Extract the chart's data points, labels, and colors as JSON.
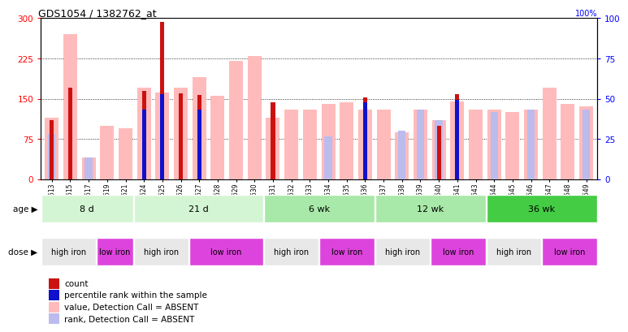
{
  "title": "GDS1054 / 1382762_at",
  "samples": [
    "GSM33513",
    "GSM33515",
    "GSM33517",
    "GSM33519",
    "GSM33521",
    "GSM33524",
    "GSM33525",
    "GSM33526",
    "GSM33527",
    "GSM33528",
    "GSM33529",
    "GSM33530",
    "GSM33531",
    "GSM33532",
    "GSM33533",
    "GSM33534",
    "GSM33535",
    "GSM33536",
    "GSM33537",
    "GSM33538",
    "GSM33539",
    "GSM33540",
    "GSM33541",
    "GSM33543",
    "GSM33544",
    "GSM33545",
    "GSM33546",
    "GSM33547",
    "GSM33548",
    "GSM33549"
  ],
  "count": [
    110,
    170,
    0,
    0,
    0,
    165,
    293,
    160,
    157,
    0,
    0,
    0,
    143,
    0,
    0,
    0,
    0,
    152,
    0,
    0,
    0,
    100,
    158,
    0,
    0,
    0,
    0,
    0,
    0,
    0
  ],
  "rank": [
    0,
    0,
    0,
    0,
    0,
    130,
    158,
    0,
    130,
    0,
    0,
    0,
    0,
    0,
    0,
    0,
    0,
    143,
    0,
    0,
    0,
    0,
    148,
    0,
    0,
    0,
    0,
    0,
    0,
    0
  ],
  "value_absent": [
    115,
    270,
    40,
    100,
    95,
    170,
    162,
    170,
    190,
    155,
    220,
    230,
    115,
    130,
    130,
    140,
    143,
    130,
    130,
    88,
    130,
    110,
    145,
    130,
    130,
    125,
    130,
    170,
    140,
    135
  ],
  "rank_absent": [
    85,
    0,
    40,
    0,
    0,
    0,
    0,
    0,
    0,
    0,
    0,
    0,
    0,
    0,
    0,
    80,
    0,
    0,
    0,
    90,
    130,
    110,
    0,
    0,
    125,
    0,
    130,
    0,
    0,
    130
  ],
  "age_groups": [
    {
      "label": "8 d",
      "start": 0,
      "end": 5,
      "color": "#d4f5d4"
    },
    {
      "label": "21 d",
      "start": 5,
      "end": 12,
      "color": "#d4f5d4"
    },
    {
      "label": "6 wk",
      "start": 12,
      "end": 18,
      "color": "#a8e8a8"
    },
    {
      "label": "12 wk",
      "start": 18,
      "end": 24,
      "color": "#a8e8a8"
    },
    {
      "label": "36 wk",
      "start": 24,
      "end": 30,
      "color": "#44cc44"
    }
  ],
  "dose_groups": [
    {
      "label": "high iron",
      "start": 0,
      "end": 3,
      "color": "#e8e8e8"
    },
    {
      "label": "low iron",
      "start": 3,
      "end": 5,
      "color": "#dd44dd"
    },
    {
      "label": "high iron",
      "start": 5,
      "end": 8,
      "color": "#e8e8e8"
    },
    {
      "label": "low iron",
      "start": 8,
      "end": 12,
      "color": "#dd44dd"
    },
    {
      "label": "high iron",
      "start": 12,
      "end": 15,
      "color": "#e8e8e8"
    },
    {
      "label": "low iron",
      "start": 15,
      "end": 18,
      "color": "#dd44dd"
    },
    {
      "label": "high iron",
      "start": 18,
      "end": 21,
      "color": "#e8e8e8"
    },
    {
      "label": "low iron",
      "start": 21,
      "end": 24,
      "color": "#dd44dd"
    },
    {
      "label": "high iron",
      "start": 24,
      "end": 27,
      "color": "#e8e8e8"
    },
    {
      "label": "low iron",
      "start": 27,
      "end": 30,
      "color": "#dd44dd"
    }
  ],
  "ylim_left": [
    0,
    300
  ],
  "ylim_right": [
    0,
    100
  ],
  "yticks_left": [
    0,
    75,
    150,
    225,
    300
  ],
  "yticks_right": [
    0,
    25,
    50,
    75,
    100
  ],
  "count_color": "#cc1111",
  "rank_color": "#1111cc",
  "value_absent_color": "#ffbbbb",
  "rank_absent_color": "#bbbbee",
  "background_color": "#ffffff",
  "tick_label_bg": "#dddddd"
}
